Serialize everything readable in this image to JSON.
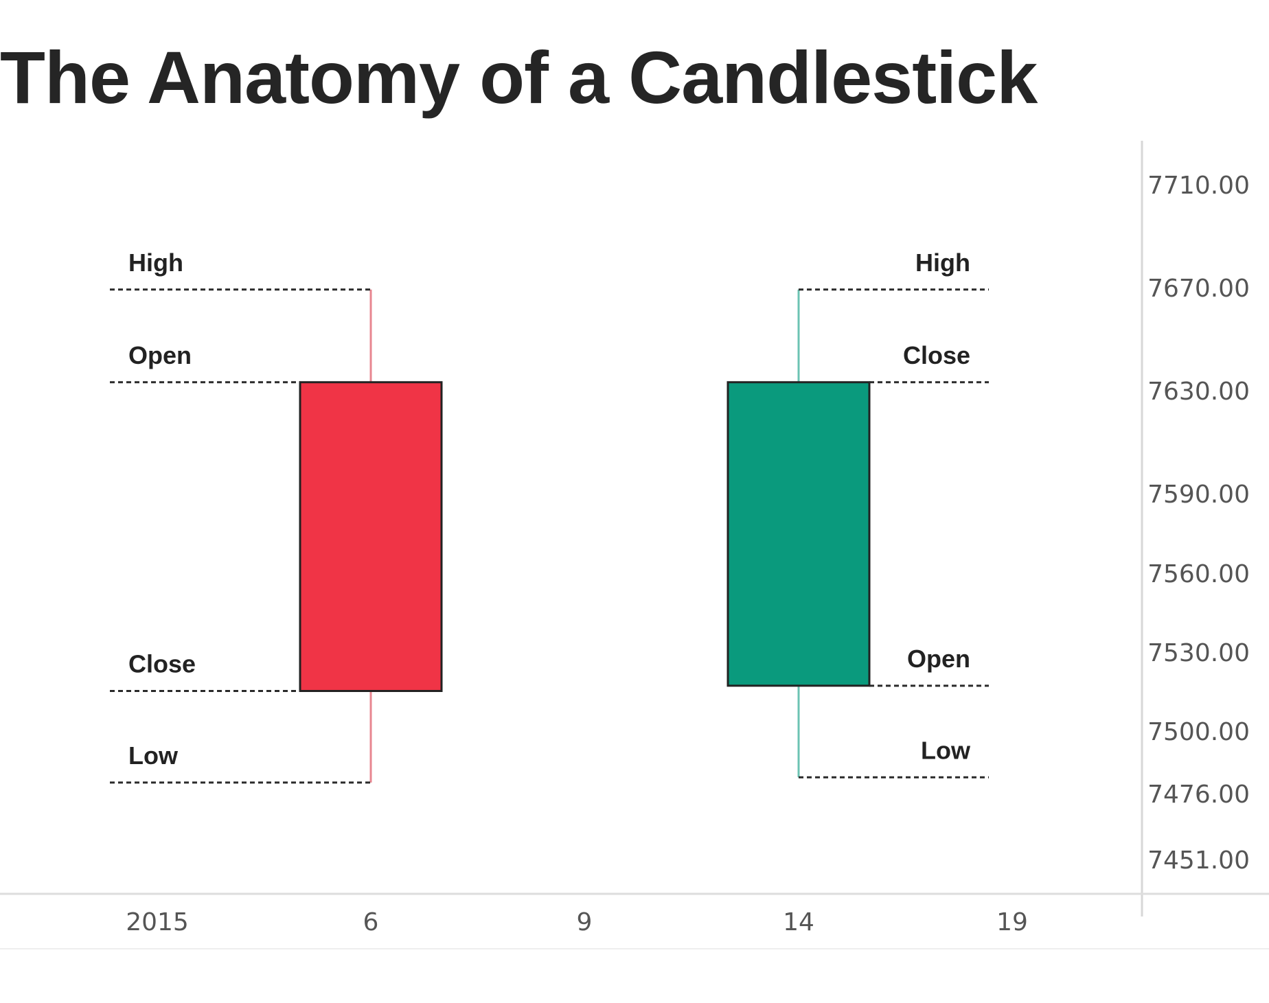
{
  "title": "The Anatomy of a Candlestick",
  "colors": {
    "bearish": "#F03446",
    "bullish": "#0A9A7D",
    "bearish_wick": "#E88690",
    "bullish_wick": "#6CC3B3",
    "text": "#252525",
    "axis_text": "#555555"
  },
  "chart_data": {
    "type": "candlestick",
    "title": "The Anatomy of a Candlestick",
    "x_ticks": [
      "2015",
      "6",
      "9",
      "14",
      "19"
    ],
    "y_ticks": [
      "7710.00",
      "7670.00",
      "7630.00",
      "7590.00",
      "7560.00",
      "7530.00",
      "7500.00",
      "7476.00",
      "7451.00"
    ],
    "grid": false,
    "candles": [
      {
        "name": "bearish",
        "direction": "down",
        "x": "6",
        "open": 7633,
        "high": 7669,
        "low": 7480,
        "close": 7515,
        "labels": {
          "high": "High",
          "open": "Open",
          "close": "Close",
          "low": "Low"
        }
      },
      {
        "name": "bullish",
        "direction": "up",
        "x": "14",
        "open": 7517,
        "high": 7669,
        "low": 7482,
        "close": 7633,
        "labels": {
          "high": "High",
          "close": "Close",
          "open": "Open",
          "low": "Low"
        }
      }
    ]
  }
}
